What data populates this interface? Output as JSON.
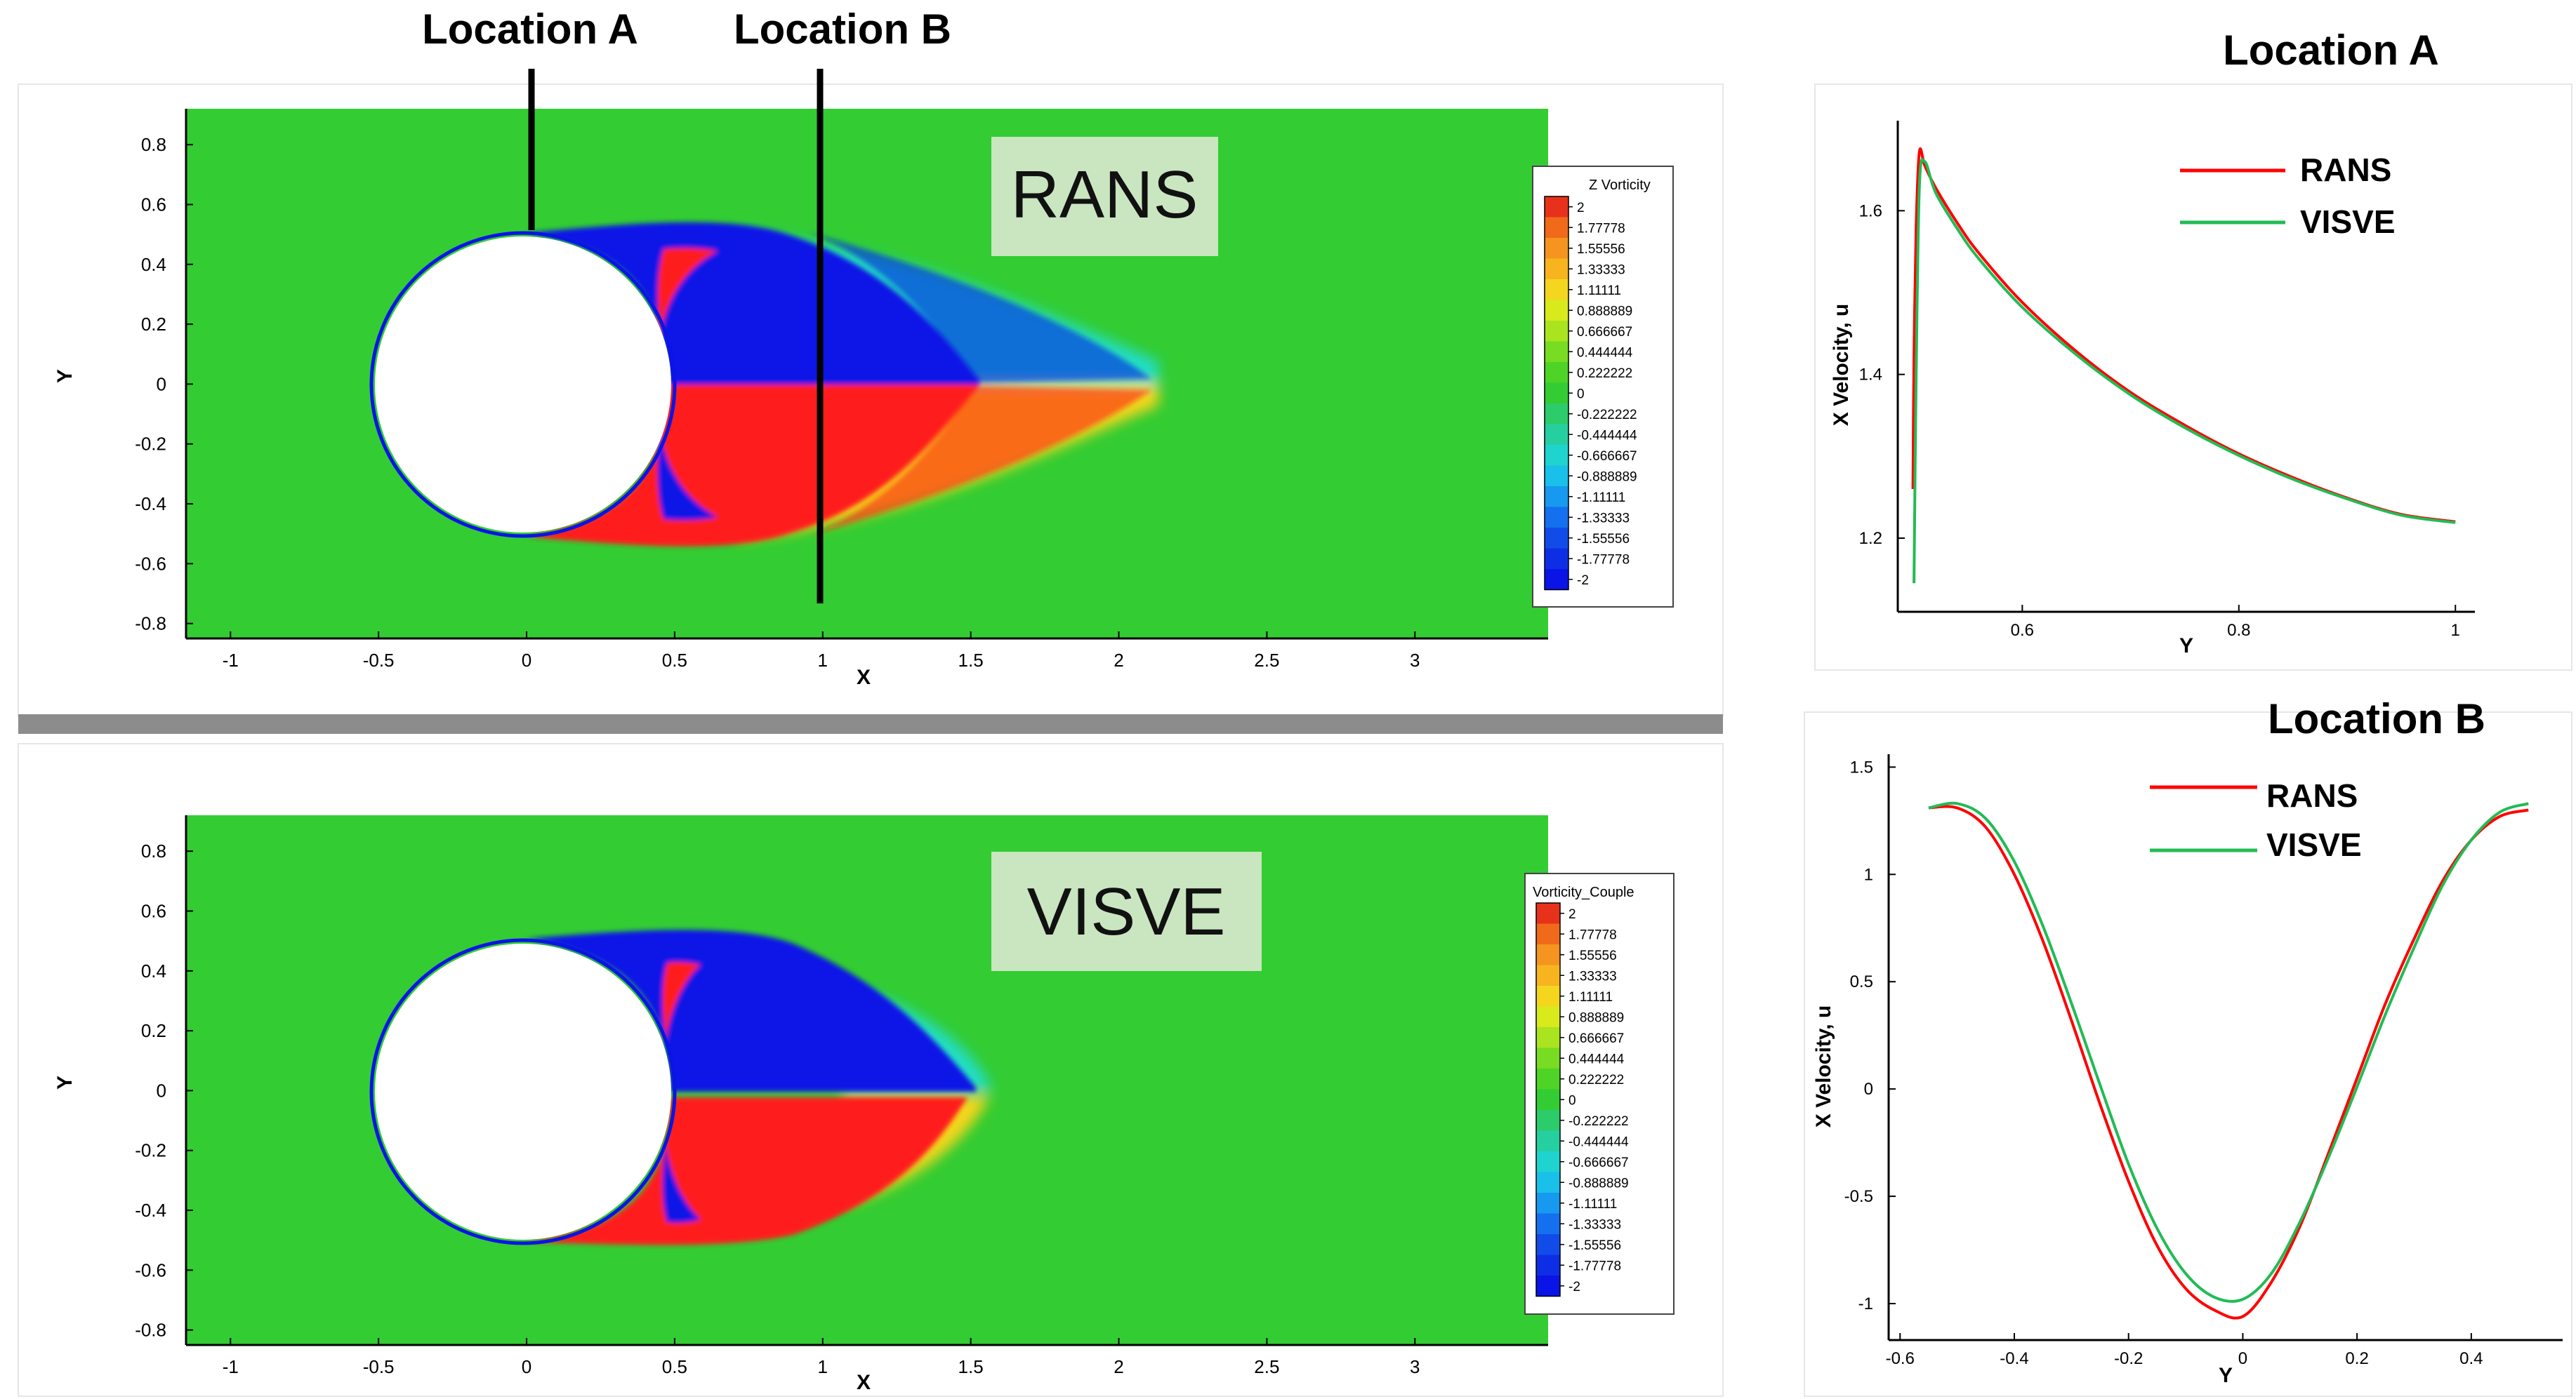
{
  "labels": {
    "location_a": "Location A",
    "location_b": "Location B"
  },
  "colors": {
    "green_bg": "#33cc33",
    "red": "#ff1a1a",
    "blue": "#0a14e6",
    "rans_line": "#ff0000",
    "visve_line": "#22bb55",
    "title_box": "#c9e6c0",
    "divider": "#8c8c8c"
  },
  "chart_data": [
    {
      "type": "heatmap",
      "title": "RANS",
      "xlabel": "X",
      "ylabel": "Y",
      "xlim": [
        -1.15,
        3.45
      ],
      "ylim": [
        -0.85,
        0.92
      ],
      "xticks": [
        "-1",
        "-0.5",
        "0",
        "0.5",
        "1",
        "1.5",
        "2",
        "2.5",
        "3"
      ],
      "xtick_values": [
        -1,
        -0.5,
        0,
        0.5,
        1,
        1.5,
        2,
        2.5,
        3
      ],
      "yticks": [
        "0.8",
        "0.6",
        "0.4",
        "0.2",
        "0",
        "-0.2",
        "-0.4",
        "-0.6",
        "-0.8"
      ],
      "ytick_values": [
        0.8,
        0.6,
        0.4,
        0.2,
        0,
        -0.2,
        -0.4,
        -0.6,
        -0.8
      ],
      "cylinder": {
        "center": [
          0,
          0
        ],
        "radius": 0.5
      },
      "wake_length_x": 2.1,
      "legend_title": "Z Vorticity",
      "legend_levels": [
        "2",
        "1.77778",
        "1.55556",
        "1.33333",
        "1.11111",
        "0.888889",
        "0.666667",
        "0.444444",
        "0.222222",
        "0",
        "-0.222222",
        "-0.444444",
        "-0.666667",
        "-0.888889",
        "-1.11111",
        "-1.33333",
        "-1.55556",
        "-1.77778",
        "-2"
      ],
      "legend_colors": [
        "#e8311b",
        "#f06a1a",
        "#f5941e",
        "#f7b41f",
        "#f4d61e",
        "#d8ea1c",
        "#a9e41e",
        "#77dc22",
        "#4ed426",
        "#33cc33",
        "#2ccc6a",
        "#25cfa0",
        "#1fd3cf",
        "#19c0ea",
        "#1699ef",
        "#1470ef",
        "#114ce9",
        "#0e2ee6",
        "#0a14e6"
      ],
      "location_markers": [
        {
          "label": "Location A",
          "x": 0.03
        },
        {
          "label": "Location B",
          "x": 1.0
        }
      ]
    },
    {
      "type": "heatmap",
      "title": "VISVE",
      "xlabel": "X",
      "ylabel": "Y",
      "xlim": [
        -1.15,
        3.45
      ],
      "ylim": [
        -0.85,
        0.92
      ],
      "xticks": [
        "-1",
        "-0.5",
        "0",
        "0.5",
        "1",
        "1.5",
        "2",
        "2.5",
        "3"
      ],
      "xtick_values": [
        -1,
        -0.5,
        0,
        0.5,
        1,
        1.5,
        2,
        2.5,
        3
      ],
      "yticks": [
        "0.8",
        "0.6",
        "0.4",
        "0.2",
        "0",
        "-0.2",
        "-0.4",
        "-0.6",
        "-0.8"
      ],
      "ytick_values": [
        0.8,
        0.6,
        0.4,
        0.2,
        0,
        -0.2,
        -0.4,
        -0.6,
        -0.8
      ],
      "cylinder": {
        "center": [
          0,
          0
        ],
        "radius": 0.5
      },
      "wake_length_x": 1.6,
      "legend_title": "Vorticity_Couple",
      "legend_levels": [
        "2",
        "1.77778",
        "1.55556",
        "1.33333",
        "1.11111",
        "0.888889",
        "0.666667",
        "0.444444",
        "0.222222",
        "0",
        "-0.222222",
        "-0.444444",
        "-0.666667",
        "-0.888889",
        "-1.11111",
        "-1.33333",
        "-1.55556",
        "-1.77778",
        "-2"
      ],
      "legend_colors": [
        "#e8311b",
        "#f06a1a",
        "#f5941e",
        "#f7b41f",
        "#f4d61e",
        "#d8ea1c",
        "#a9e41e",
        "#77dc22",
        "#4ed426",
        "#33cc33",
        "#2ccc6a",
        "#25cfa0",
        "#1fd3cf",
        "#19c0ea",
        "#1699ef",
        "#1470ef",
        "#114ce9",
        "#0e2ee6",
        "#0a14e6"
      ]
    },
    {
      "type": "line",
      "title": "Location A",
      "xlabel": "Y",
      "ylabel": "X Velocity, u",
      "xlim": [
        0.485,
        1.018
      ],
      "ylim": [
        1.11,
        1.71
      ],
      "xticks": [
        "0.6",
        "0.8",
        "1"
      ],
      "xtick_values": [
        0.6,
        0.8,
        1.0
      ],
      "yticks": [
        "1.6",
        "1.4",
        "1.2"
      ],
      "ytick_values": [
        1.6,
        1.4,
        1.2
      ],
      "series": [
        {
          "name": "RANS",
          "x": [
            0.499,
            0.5,
            0.502,
            0.505,
            0.51,
            0.52,
            0.54,
            0.56,
            0.6,
            0.65,
            0.7,
            0.75,
            0.8,
            0.85,
            0.9,
            0.95,
            1.0
          ],
          "y": [
            1.26,
            1.42,
            1.58,
            1.672,
            1.655,
            1.628,
            1.585,
            1.548,
            1.488,
            1.428,
            1.378,
            1.338,
            1.303,
            1.274,
            1.249,
            1.229,
            1.22
          ]
        },
        {
          "name": "VISVE",
          "x": [
            0.5,
            0.502,
            0.505,
            0.51,
            0.52,
            0.54,
            0.56,
            0.6,
            0.65,
            0.7,
            0.75,
            0.8,
            0.85,
            0.9,
            0.95,
            1.0
          ],
          "y": [
            1.145,
            1.4,
            1.63,
            1.66,
            1.622,
            1.578,
            1.541,
            1.482,
            1.424,
            1.375,
            1.335,
            1.301,
            1.272,
            1.248,
            1.228,
            1.219
          ]
        }
      ]
    },
    {
      "type": "line",
      "title": "Location B",
      "xlabel": "Y",
      "ylabel": "X Velocity, u",
      "xlim": [
        -0.62,
        0.56
      ],
      "ylim": [
        -1.17,
        1.56
      ],
      "xticks": [
        "-0.6",
        "-0.4",
        "-0.2",
        "0",
        "0.2",
        "0.4"
      ],
      "xtick_values": [
        -0.6,
        -0.4,
        -0.2,
        0,
        0.2,
        0.4
      ],
      "yticks": [
        "1.5",
        "1",
        "0.5",
        "0",
        "-0.5",
        "-1"
      ],
      "ytick_values": [
        1.5,
        1,
        0.5,
        0,
        -0.5,
        -1
      ],
      "series": [
        {
          "name": "RANS",
          "x": [
            -0.55,
            -0.5,
            -0.45,
            -0.4,
            -0.35,
            -0.3,
            -0.25,
            -0.2,
            -0.15,
            -0.1,
            -0.05,
            0.0,
            0.05,
            0.1,
            0.15,
            0.2,
            0.25,
            0.3,
            0.35,
            0.4,
            0.45,
            0.5
          ],
          "y": [
            1.31,
            1.31,
            1.22,
            1.0,
            0.69,
            0.32,
            -0.07,
            -0.43,
            -0.73,
            -0.93,
            -1.03,
            -1.06,
            -0.9,
            -0.64,
            -0.3,
            0.05,
            0.4,
            0.7,
            0.97,
            1.16,
            1.27,
            1.3
          ]
        },
        {
          "name": "VISVE",
          "x": [
            -0.55,
            -0.5,
            -0.45,
            -0.4,
            -0.35,
            -0.3,
            -0.25,
            -0.2,
            -0.15,
            -0.1,
            -0.05,
            0.0,
            0.05,
            0.1,
            0.15,
            0.2,
            0.25,
            0.3,
            0.35,
            0.4,
            0.45,
            0.5
          ],
          "y": [
            1.31,
            1.33,
            1.26,
            1.06,
            0.76,
            0.4,
            0.02,
            -0.35,
            -0.65,
            -0.86,
            -0.97,
            -0.98,
            -0.86,
            -0.62,
            -0.32,
            0.01,
            0.35,
            0.66,
            0.95,
            1.16,
            1.29,
            1.33
          ]
        }
      ]
    }
  ]
}
